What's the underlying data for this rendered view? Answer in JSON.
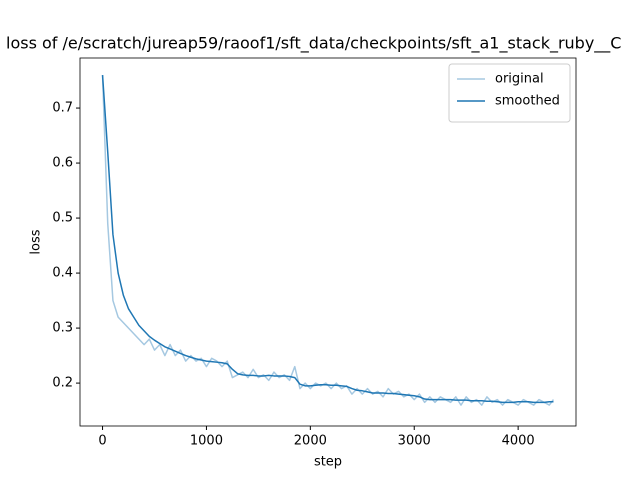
{
  "chart_data": {
    "type": "line",
    "title": "loss of /e/scratch/jureap59/raoof1/sft_data/checkpoints/sft_a1_stack_ruby__C",
    "x_label": "step",
    "y_label": "loss",
    "legend": "upper right",
    "xlim": [
      -217,
      4557
    ],
    "ylim": [
      0.122,
      0.791
    ],
    "xticks": [
      0,
      1000,
      2000,
      3000,
      4000
    ],
    "yticks": [
      0.2,
      0.3,
      0.4,
      0.5,
      0.6,
      0.7
    ],
    "x": [
      0,
      50,
      100,
      150,
      200,
      250,
      300,
      350,
      400,
      450,
      500,
      550,
      600,
      650,
      700,
      750,
      800,
      850,
      900,
      950,
      1000,
      1050,
      1100,
      1150,
      1200,
      1250,
      1300,
      1350,
      1400,
      1450,
      1500,
      1550,
      1600,
      1650,
      1700,
      1750,
      1800,
      1850,
      1900,
      1950,
      2000,
      2050,
      2100,
      2150,
      2200,
      2250,
      2300,
      2350,
      2400,
      2450,
      2500,
      2550,
      2600,
      2650,
      2700,
      2750,
      2800,
      2850,
      2900,
      2950,
      3000,
      3050,
      3100,
      3150,
      3200,
      3250,
      3300,
      3350,
      3400,
      3450,
      3500,
      3550,
      3600,
      3650,
      3700,
      3750,
      3800,
      3850,
      3900,
      3950,
      4000,
      4050,
      4100,
      4150,
      4200,
      4250,
      4300,
      4340
    ],
    "series": [
      {
        "name": "original",
        "color": "#a5c8e1",
        "values": [
          0.76,
          0.49,
          0.35,
          0.32,
          0.31,
          0.3,
          0.29,
          0.28,
          0.27,
          0.28,
          0.26,
          0.27,
          0.25,
          0.27,
          0.25,
          0.26,
          0.24,
          0.25,
          0.24,
          0.245,
          0.23,
          0.245,
          0.24,
          0.23,
          0.24,
          0.21,
          0.215,
          0.22,
          0.21,
          0.225,
          0.21,
          0.215,
          0.205,
          0.22,
          0.21,
          0.215,
          0.205,
          0.23,
          0.19,
          0.2,
          0.19,
          0.2,
          0.195,
          0.2,
          0.19,
          0.2,
          0.19,
          0.195,
          0.18,
          0.19,
          0.18,
          0.19,
          0.18,
          0.185,
          0.175,
          0.19,
          0.18,
          0.185,
          0.175,
          0.18,
          0.17,
          0.18,
          0.165,
          0.175,
          0.165,
          0.175,
          0.17,
          0.165,
          0.175,
          0.16,
          0.175,
          0.165,
          0.17,
          0.16,
          0.175,
          0.165,
          0.17,
          0.16,
          0.17,
          0.165,
          0.16,
          0.17,
          0.165,
          0.16,
          0.17,
          0.165,
          0.16,
          0.17
        ]
      },
      {
        "name": "smoothed",
        "color": "#1f77b4",
        "values": [
          0.76,
          0.62,
          0.47,
          0.4,
          0.36,
          0.335,
          0.32,
          0.305,
          0.295,
          0.285,
          0.278,
          0.272,
          0.266,
          0.262,
          0.258,
          0.254,
          0.25,
          0.247,
          0.244,
          0.242,
          0.24,
          0.239,
          0.238,
          0.237,
          0.235,
          0.225,
          0.217,
          0.215,
          0.214,
          0.214,
          0.213,
          0.213,
          0.214,
          0.213,
          0.213,
          0.213,
          0.212,
          0.21,
          0.198,
          0.195,
          0.195,
          0.196,
          0.197,
          0.197,
          0.196,
          0.196,
          0.195,
          0.194,
          0.19,
          0.187,
          0.186,
          0.184,
          0.182,
          0.182,
          0.182,
          0.181,
          0.181,
          0.18,
          0.179,
          0.178,
          0.177,
          0.175,
          0.171,
          0.17,
          0.17,
          0.17,
          0.17,
          0.17,
          0.169,
          0.169,
          0.169,
          0.168,
          0.168,
          0.168,
          0.167,
          0.167,
          0.166,
          0.165,
          0.165,
          0.165,
          0.166,
          0.166,
          0.166,
          0.165,
          0.165,
          0.165,
          0.166,
          0.166
        ]
      }
    ]
  }
}
